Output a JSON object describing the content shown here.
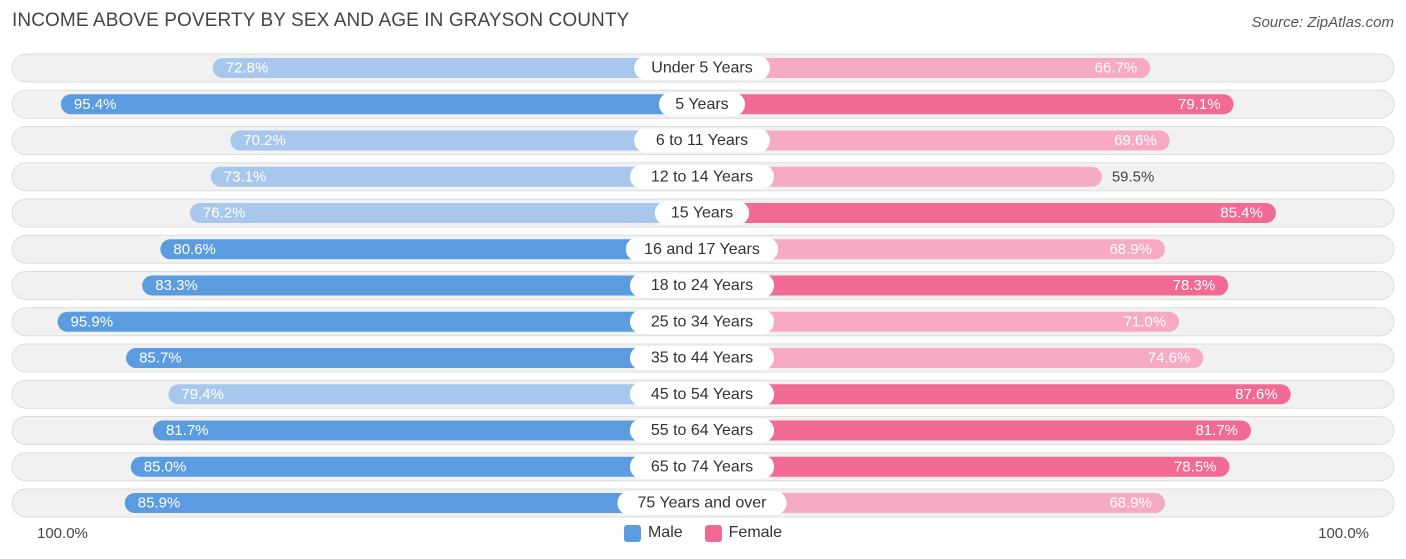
{
  "title": "INCOME ABOVE POVERTY BY SEX AND AGE IN GRAYSON COUNTY",
  "source": "Source: ZipAtlas.com",
  "axis": {
    "left_label": "100.0%",
    "right_label": "100.0%"
  },
  "legend": {
    "male_label": "Male",
    "female_label": "Female"
  },
  "colors": {
    "male_dark": "#5b9bdf",
    "male_light": "#a7c8ec",
    "female_dark": "#f06a93",
    "female_light": "#f7aac3",
    "row_bg": "#f1f1f1",
    "row_border": "#dedede"
  },
  "chart_data": {
    "type": "bar",
    "orientation": "horizontal-diverging",
    "title": "INCOME ABOVE POVERTY BY SEX AND AGE IN GRAYSON COUNTY",
    "xlim": [
      0,
      100
    ],
    "categories": [
      "Under 5 Years",
      "5 Years",
      "6 to 11 Years",
      "12 to 14 Years",
      "15 Years",
      "16 and 17 Years",
      "18 to 24 Years",
      "25 to 34 Years",
      "35 to 44 Years",
      "45 to 54 Years",
      "55 to 64 Years",
      "65 to 74 Years",
      "75 Years and over"
    ],
    "series": [
      {
        "name": "Male",
        "values": [
          72.8,
          95.4,
          70.2,
          73.1,
          76.2,
          80.6,
          83.3,
          95.9,
          85.7,
          79.4,
          81.7,
          85.0,
          85.9
        ],
        "labels": [
          "72.8%",
          "95.4%",
          "70.2%",
          "73.1%",
          "76.2%",
          "80.6%",
          "83.3%",
          "95.9%",
          "85.7%",
          "79.4%",
          "81.7%",
          "85.0%",
          "85.9%"
        ]
      },
      {
        "name": "Female",
        "values": [
          66.7,
          79.1,
          69.6,
          59.5,
          85.4,
          68.9,
          78.3,
          71.0,
          74.6,
          87.6,
          81.7,
          78.5,
          68.9
        ],
        "labels": [
          "66.7%",
          "79.1%",
          "69.6%",
          "59.5%",
          "85.4%",
          "68.9%",
          "78.3%",
          "71.0%",
          "74.6%",
          "87.6%",
          "81.7%",
          "78.5%",
          "68.9%"
        ]
      }
    ]
  }
}
